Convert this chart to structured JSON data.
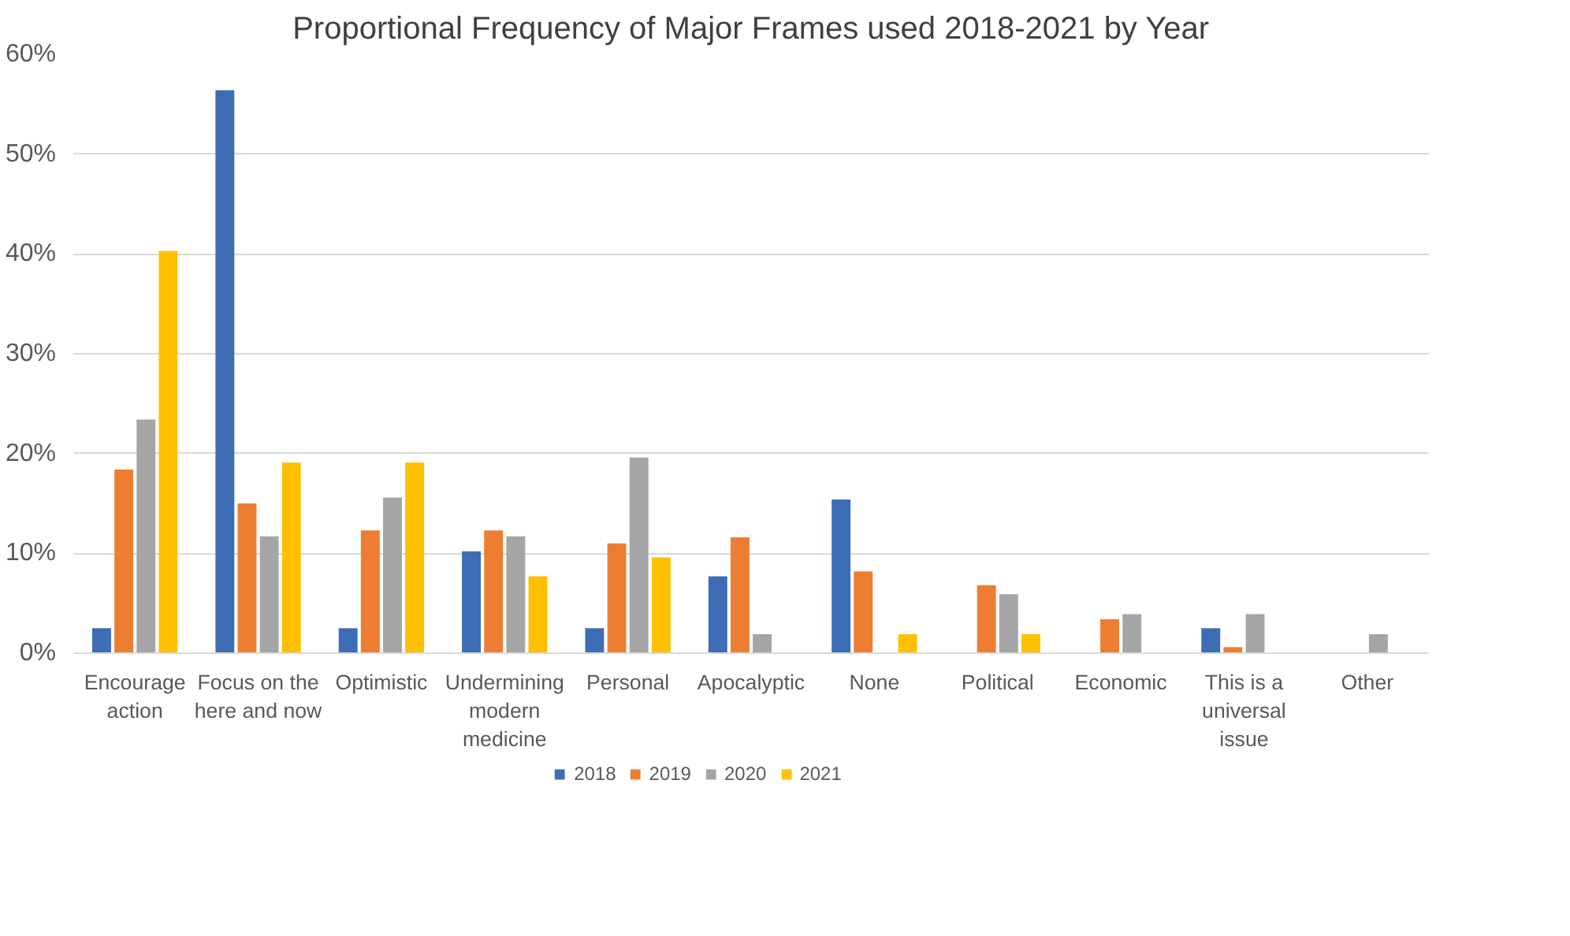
{
  "chart_data": {
    "type": "bar",
    "title": "Proportional Frequency of Major Frames used 2018-2021 by Year",
    "categories": [
      "Encourage action",
      "Focus on the here and now",
      "Optimistic",
      "Undermining modern medicine",
      "Personal",
      "Apocalyptic",
      "None",
      "Political",
      "Economic",
      "This is a universal issue",
      "Other"
    ],
    "series": [
      {
        "name": "2018",
        "color": "#3d6db5",
        "values": [
          2.5,
          56.4,
          2.5,
          10.2,
          2.5,
          7.7,
          15.4,
          0,
          0,
          2.5,
          0
        ]
      },
      {
        "name": "2019",
        "color": "#ed7d31",
        "values": [
          18.4,
          15.0,
          12.3,
          12.3,
          11.0,
          11.6,
          8.2,
          6.8,
          3.4,
          0.6,
          0
        ]
      },
      {
        "name": "2020",
        "color": "#a5a5a5",
        "values": [
          23.4,
          11.7,
          15.6,
          11.7,
          19.6,
          1.9,
          0,
          5.9,
          3.9,
          3.9,
          1.9
        ]
      },
      {
        "name": "2021",
        "color": "#ffc000",
        "values": [
          40.3,
          19.1,
          19.1,
          7.7,
          9.6,
          0,
          1.9,
          1.9,
          0,
          0,
          0
        ]
      }
    ],
    "ylim": [
      0,
      60
    ],
    "yticks": [
      {
        "value": 0,
        "label": "0%"
      },
      {
        "value": 10,
        "label": "10%"
      },
      {
        "value": 20,
        "label": "20%"
      },
      {
        "value": 30,
        "label": "30%"
      },
      {
        "value": 40,
        "label": "40%"
      },
      {
        "value": 50,
        "label": "50%"
      },
      {
        "value": 60,
        "label": "60%"
      }
    ],
    "grid": "y",
    "legend": "bottom"
  }
}
